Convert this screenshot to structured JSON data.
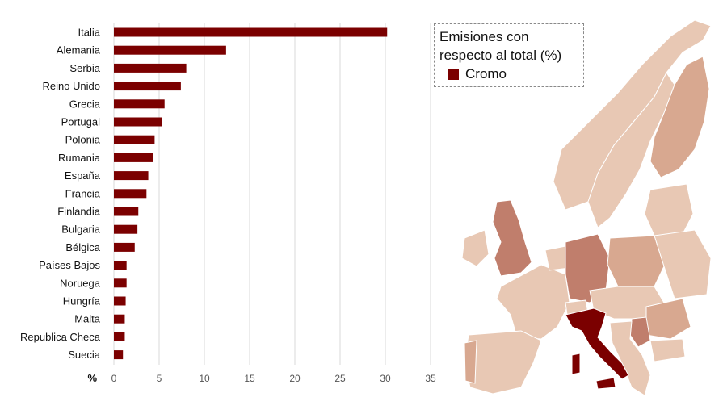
{
  "chart_data": {
    "type": "bar",
    "orientation": "horizontal",
    "categories": [
      "Italia",
      "Alemania",
      "Serbia",
      "Reino Unido",
      "Grecia",
      "Portugal",
      "Polonia",
      "Rumania",
      "España",
      "Francia",
      "Finlandia",
      "Bulgaria",
      "Bélgica",
      "Países Bajos",
      "Noruega",
      "Hungría",
      "Malta",
      "Republica Checa",
      "Suecia"
    ],
    "values": [
      30.2,
      12.4,
      8.0,
      7.4,
      5.6,
      5.3,
      4.5,
      4.3,
      3.8,
      3.6,
      2.7,
      2.6,
      2.3,
      1.4,
      1.4,
      1.3,
      1.2,
      1.2,
      1.0
    ],
    "x_unit_label": "%",
    "x_ticks": [
      0,
      5,
      10,
      15,
      20,
      25,
      30,
      35
    ],
    "xlim": [
      0,
      35
    ],
    "grid": true,
    "bar_color": "#7b0000"
  },
  "legend": {
    "title": "Emisiones con respecto al total (%)",
    "item": "Cromo",
    "color": "#7b0000"
  },
  "map_colors": {
    "base": "#e8c8b4",
    "medium": "#d8a890",
    "high": "#c07e6c",
    "highest": "#7b0000"
  }
}
